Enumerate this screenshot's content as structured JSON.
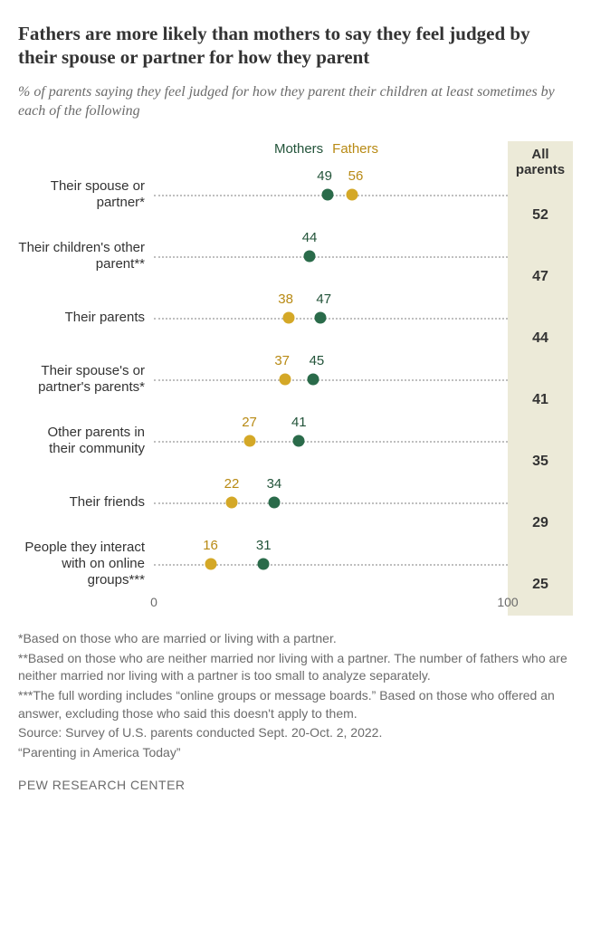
{
  "title": "Fathers are more likely than mothers to say they feel judged by their spouse or partner for how they parent",
  "subtitle": "% of parents saying they feel judged for how they parent their children at least sometimes by each of the following",
  "legend": {
    "mothers": "Mothers",
    "fathers": "Fathers"
  },
  "all_header": "All parents",
  "axis": {
    "min": 0,
    "max": 100,
    "tick0": "0",
    "tick100": "100"
  },
  "colors": {
    "mother_dot": "#2a6b4a",
    "father_dot": "#d4a827",
    "mother_text": "#23543a",
    "father_text": "#b88a14",
    "allbg": "#ecead8",
    "dotted": "#bfbfbf",
    "text": "#333333",
    "muted": "#6b6b6b"
  },
  "rows": [
    {
      "label": "Their spouse or partner*",
      "mother": 49,
      "father": 56,
      "all": 52,
      "m_dx": -3,
      "f_dx": 4
    },
    {
      "label": "Their children's other parent**",
      "mother": 44,
      "father": null,
      "all": 47,
      "m_dx": 0,
      "f_dx": 0
    },
    {
      "label": "Their parents",
      "mother": 47,
      "father": 38,
      "all": 44,
      "m_dx": 4,
      "f_dx": -3
    },
    {
      "label": "Their spouse's or partner's parents*",
      "mother": 45,
      "father": 37,
      "all": 41,
      "m_dx": 4,
      "f_dx": -3
    },
    {
      "label": "Other parents in their community",
      "mother": 41,
      "father": 27,
      "all": 35,
      "m_dx": 0,
      "f_dx": 0
    },
    {
      "label": "Their friends",
      "mother": 34,
      "father": 22,
      "all": 29,
      "m_dx": 0,
      "f_dx": 0
    },
    {
      "label": "People they interact with on online groups***",
      "mother": 31,
      "father": 16,
      "all": 25,
      "m_dx": 0,
      "f_dx": 0
    }
  ],
  "notes": [
    "*Based on those who are married or living with a partner.",
    "**Based on those who are neither married nor living with a partner. The number of fathers who are neither married nor living with a partner is too small to analyze separately.",
    "***The full wording includes “online groups or message boards.” Based on those who offered an answer, excluding those who said this doesn't apply to them.",
    "Source: Survey of U.S. parents conducted Sept. 20-Oct. 2, 2022.",
    "“Parenting in America Today”"
  ],
  "footer": "PEW RESEARCH CENTER"
}
